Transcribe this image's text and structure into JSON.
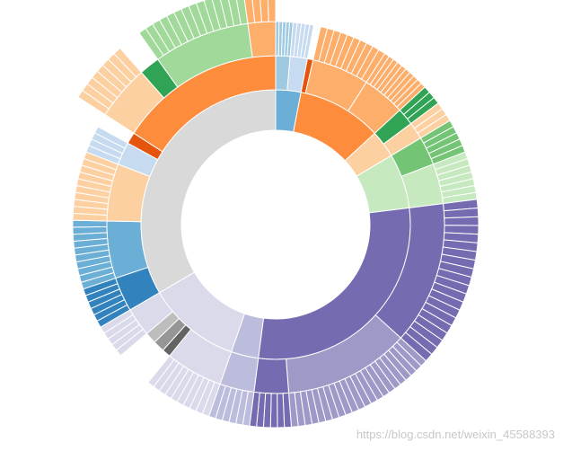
{
  "chart_data": {
    "type": "sunburst",
    "children": [
      {
        "color": "#6baed6",
        "children": [
          {
            "color": "#9ecae1",
            "values": [
              1,
              1,
              1,
              1,
              1
            ]
          },
          {
            "color": "#c6dbef",
            "values": [
              1.2,
              1.2,
              1.2,
              1.2,
              1.2
            ]
          }
        ]
      },
      {
        "color": "#fd8d3c",
        "children": [
          {
            "color": "#e6550d",
            "value": 2
          },
          {
            "color": "#fdae6b",
            "values": [
              2,
              2,
              2,
              2,
              2,
              2,
              2,
              2,
              2,
              2
            ]
          },
          {
            "color": "#fdae6b",
            "values": [
              1.5,
              1.5,
              1.5,
              1.5,
              1.5,
              1.5,
              1.5,
              1.5,
              1.5,
              1.5
            ]
          }
        ]
      },
      {
        "color": "#fdd0a2",
        "children": [
          {
            "color": "#31a354",
            "values": [
              2,
              2,
              2
            ]
          },
          {
            "color": "#fdd0a2",
            "values": [
              2,
              2,
              2
            ]
          }
        ]
      },
      {
        "color": "#c7e9c0",
        "children": [
          {
            "color": "#74c476",
            "values": [
              2,
              2,
              2,
              2,
              2
            ]
          },
          {
            "color": "#c7e9c0",
            "values": [
              2,
              2,
              2,
              2,
              2,
              2,
              2
            ]
          }
        ]
      },
      {
        "color": "#756bb1",
        "children": [
          {
            "color": "#756bb1",
            "values": [
              2.5,
              2.5,
              2.5,
              2.5,
              2.5,
              2.5,
              2.5,
              2.5,
              2.5,
              2.5,
              2.5,
              2.5,
              2.5,
              2.5,
              2.5,
              2.5,
              2.5,
              2.5,
              2.5,
              2.5
            ]
          },
          {
            "color": "#9e9ac8",
            "values": [
              2,
              2,
              2,
              2,
              2,
              2,
              2,
              2,
              2,
              2,
              2,
              2,
              2,
              2,
              2,
              2,
              2,
              2,
              2,
              2,
              2,
              2
            ]
          },
          {
            "color": "#756bb1",
            "values": [
              2,
              2,
              2,
              2,
              2,
              2
            ]
          }
        ]
      },
      {
        "color": "#bcbddc",
        "children": [
          {
            "color": "#bcbddc",
            "values": [
              2,
              2,
              2,
              2,
              2,
              2
            ]
          }
        ]
      },
      {
        "color": "#dadaeb",
        "children": [
          {
            "color": "#dadaeb",
            "values": [
              2,
              2,
              2,
              2,
              2,
              2,
              2,
              2,
              2,
              2
            ]
          },
          {
            "color": "#636363",
            "value": 3
          },
          {
            "color": "#969696",
            "value": 4
          },
          {
            "color": "#bdbdbd",
            "value": 4
          },
          {
            "color": "#dadaeb",
            "values": [
              2,
              2,
              2,
              2,
              2
            ]
          }
        ]
      },
      {
        "color": "#d9d9d9",
        "children": [
          {
            "color": "#3182bd",
            "values": [
              2,
              2,
              2,
              2,
              2,
              2
            ]
          },
          {
            "color": "#6baed6",
            "values": [
              2,
              2,
              2,
              2,
              2,
              2,
              2,
              2,
              2,
              2
            ]
          },
          {
            "color": "#fdd0a2",
            "values": [
              2,
              2,
              2,
              2,
              2,
              2,
              2,
              2,
              2,
              2
            ]
          },
          {
            "color": "#c6dbef",
            "values": [
              2,
              2,
              2,
              2
            ]
          },
          {
            "color": "#e6550d",
            "value": 4
          },
          {
            "color": "#fd8d3c",
            "children": [
              {
                "color": "#fdd0a2",
                "values": [
                  2,
                  2,
                  2,
                  2,
                  2,
                  2,
                  2,
                  2
                ]
              },
              {
                "color": "#31a354",
                "value": 6
              },
              {
                "color": "#a1d99b",
                "values": [
                  2,
                  2,
                  2,
                  2,
                  2,
                  2,
                  2,
                  2,
                  2,
                  2,
                  2,
                  2,
                  2,
                  2
                ]
              },
              {
                "color": "#fdae6b",
                "values": [
                  2,
                  2,
                  2,
                  2
                ]
              }
            ]
          }
        ]
      }
    ]
  },
  "watermark": "https://blog.csdn.net/weixin_45588393"
}
